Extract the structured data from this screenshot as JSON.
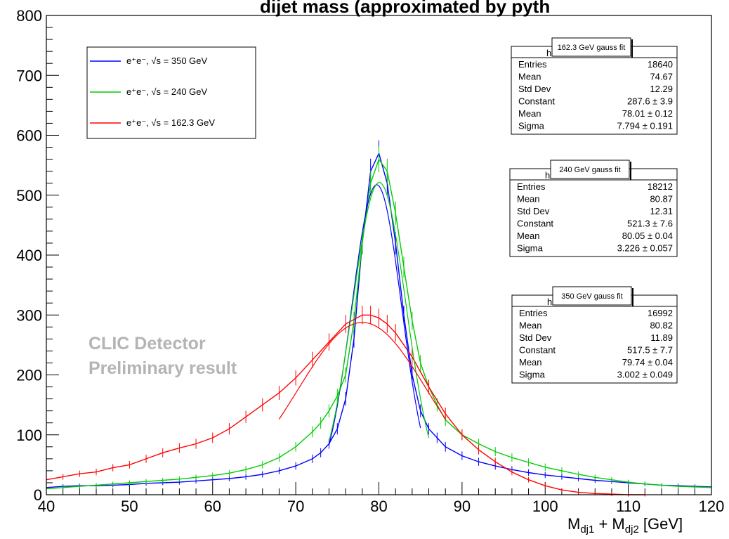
{
  "chart_data": {
    "type": "line",
    "title_fragment": "dijet mass (approximated by pyth",
    "xlabel_parts": [
      "M",
      "dj1",
      " + M",
      "dj2",
      " [GeV]"
    ],
    "xlim": [
      40,
      120
    ],
    "ylim": [
      0,
      800
    ],
    "x_ticks": [
      40,
      50,
      60,
      70,
      80,
      90,
      100,
      110,
      120
    ],
    "y_ticks": [
      0,
      100,
      200,
      300,
      400,
      500,
      600,
      700,
      800
    ],
    "watermark": [
      "CLIC Detector",
      "Preliminary result"
    ],
    "legend": [
      {
        "label": "e⁺e⁻, √s = 350 GeV",
        "color": "#0000ff"
      },
      {
        "label": "e⁺e⁻, √s = 240 GeV",
        "color": "#00cc00"
      },
      {
        "label": "e⁺e⁻, √s = 162.3 GeV",
        "color": "#ff0000"
      }
    ],
    "series": [
      {
        "name": "e⁺e⁻, √s = 350 GeV",
        "color": "#0000ff",
        "x": [
          40,
          42,
          44,
          46,
          48,
          50,
          52,
          54,
          56,
          58,
          60,
          62,
          64,
          66,
          68,
          70,
          72,
          73,
          74,
          75,
          76,
          77,
          78,
          79,
          80,
          81,
          82,
          83,
          84,
          85,
          86,
          87,
          88,
          90,
          92,
          94,
          96,
          98,
          100,
          102,
          104,
          106,
          108,
          110,
          112,
          114,
          116,
          118,
          120
        ],
        "y": [
          12,
          14,
          15,
          15,
          16,
          17,
          19,
          20,
          21,
          23,
          25,
          27,
          30,
          34,
          40,
          48,
          60,
          70,
          85,
          110,
          160,
          260,
          420,
          540,
          570,
          520,
          420,
          300,
          200,
          140,
          110,
          95,
          80,
          65,
          55,
          48,
          42,
          37,
          33,
          30,
          27,
          24,
          22,
          20,
          18,
          16,
          15,
          14,
          13
        ]
      },
      {
        "name": "e⁺e⁻, √s = 240 GeV",
        "color": "#00cc00",
        "x": [
          40,
          42,
          44,
          46,
          48,
          50,
          52,
          54,
          56,
          58,
          60,
          62,
          64,
          66,
          68,
          70,
          72,
          73,
          74,
          75,
          76,
          77,
          78,
          79,
          80,
          81,
          82,
          83,
          84,
          85,
          86,
          87,
          88,
          90,
          92,
          94,
          96,
          98,
          100,
          102,
          104,
          106,
          108,
          110,
          112,
          114,
          116,
          118,
          120
        ],
        "y": [
          10,
          12,
          14,
          16,
          18,
          20,
          22,
          24,
          26,
          29,
          32,
          36,
          42,
          50,
          62,
          80,
          105,
          120,
          140,
          165,
          200,
          290,
          420,
          520,
          560,
          540,
          470,
          380,
          290,
          220,
          180,
          150,
          125,
          100,
          85,
          72,
          62,
          54,
          46,
          40,
          34,
          29,
          25,
          21,
          18,
          16,
          14,
          13,
          12
        ]
      },
      {
        "name": "e⁺e⁻, √s = 162.3 GeV",
        "color": "#ff0000",
        "x": [
          40,
          42,
          44,
          46,
          48,
          50,
          52,
          54,
          56,
          58,
          60,
          62,
          64,
          66,
          68,
          70,
          72,
          74,
          76,
          78,
          79,
          80,
          81,
          82,
          84,
          86,
          88,
          90,
          92,
          94,
          96,
          98,
          100,
          102,
          104,
          106,
          108,
          110,
          112
        ],
        "y": [
          25,
          30,
          35,
          38,
          45,
          50,
          60,
          70,
          78,
          85,
          95,
          110,
          130,
          150,
          170,
          195,
          225,
          255,
          285,
          300,
          300,
          295,
          285,
          270,
          230,
          180,
          135,
          100,
          75,
          55,
          38,
          25,
          15,
          8,
          4,
          2,
          1,
          0,
          0
        ]
      }
    ],
    "fit_curves": [
      {
        "name": "350 GeV gauss fit",
        "color": "#0000ff",
        "constant": 517.5,
        "mean": 79.74,
        "sigma": 3.002,
        "range": [
          74,
          85
        ]
      },
      {
        "name": "240 GeV gauss fit",
        "color": "#00cc00",
        "constant": 521.3,
        "mean": 80.05,
        "sigma": 3.226,
        "range": [
          74,
          86
        ]
      },
      {
        "name": "162.3 GeV gauss fit",
        "color": "#ff0000",
        "constant": 287.6,
        "mean": 78.01,
        "sigma": 7.794,
        "range": [
          68,
          88
        ]
      }
    ],
    "stat_boxes": [
      {
        "title": "162.3 GeV gauss fit",
        "tab": "h",
        "rows": [
          [
            "Entries",
            "18640"
          ],
          [
            "Mean",
            "74.67"
          ],
          [
            "Std Dev",
            "12.29"
          ],
          [
            "Constant",
            "287.6 ± 3.9"
          ],
          [
            "Mean",
            "78.01 ± 0.12"
          ],
          [
            "Sigma",
            "7.794 ± 0.191"
          ]
        ]
      },
      {
        "title": "240 GeV gauss fit",
        "tab": "h",
        "rows": [
          [
            "Entries",
            "18212"
          ],
          [
            "Mean",
            "80.87"
          ],
          [
            "Std Dev",
            "12.31"
          ],
          [
            "Constant",
            "521.3 ± 7.6"
          ],
          [
            "Mean",
            "80.05 ± 0.04"
          ],
          [
            "Sigma",
            "3.226 ± 0.057"
          ]
        ]
      },
      {
        "title": "350 GeV gauss fit",
        "tab": "h",
        "rows": [
          [
            "Entries",
            "16992"
          ],
          [
            "Mean",
            "80.82"
          ],
          [
            "Std Dev",
            "11.89"
          ],
          [
            "Constant",
            "517.5 ± 7.7"
          ],
          [
            "Mean",
            "79.74 ± 0.04"
          ],
          [
            "Sigma",
            "3.002 ± 0.049"
          ]
        ]
      }
    ]
  }
}
